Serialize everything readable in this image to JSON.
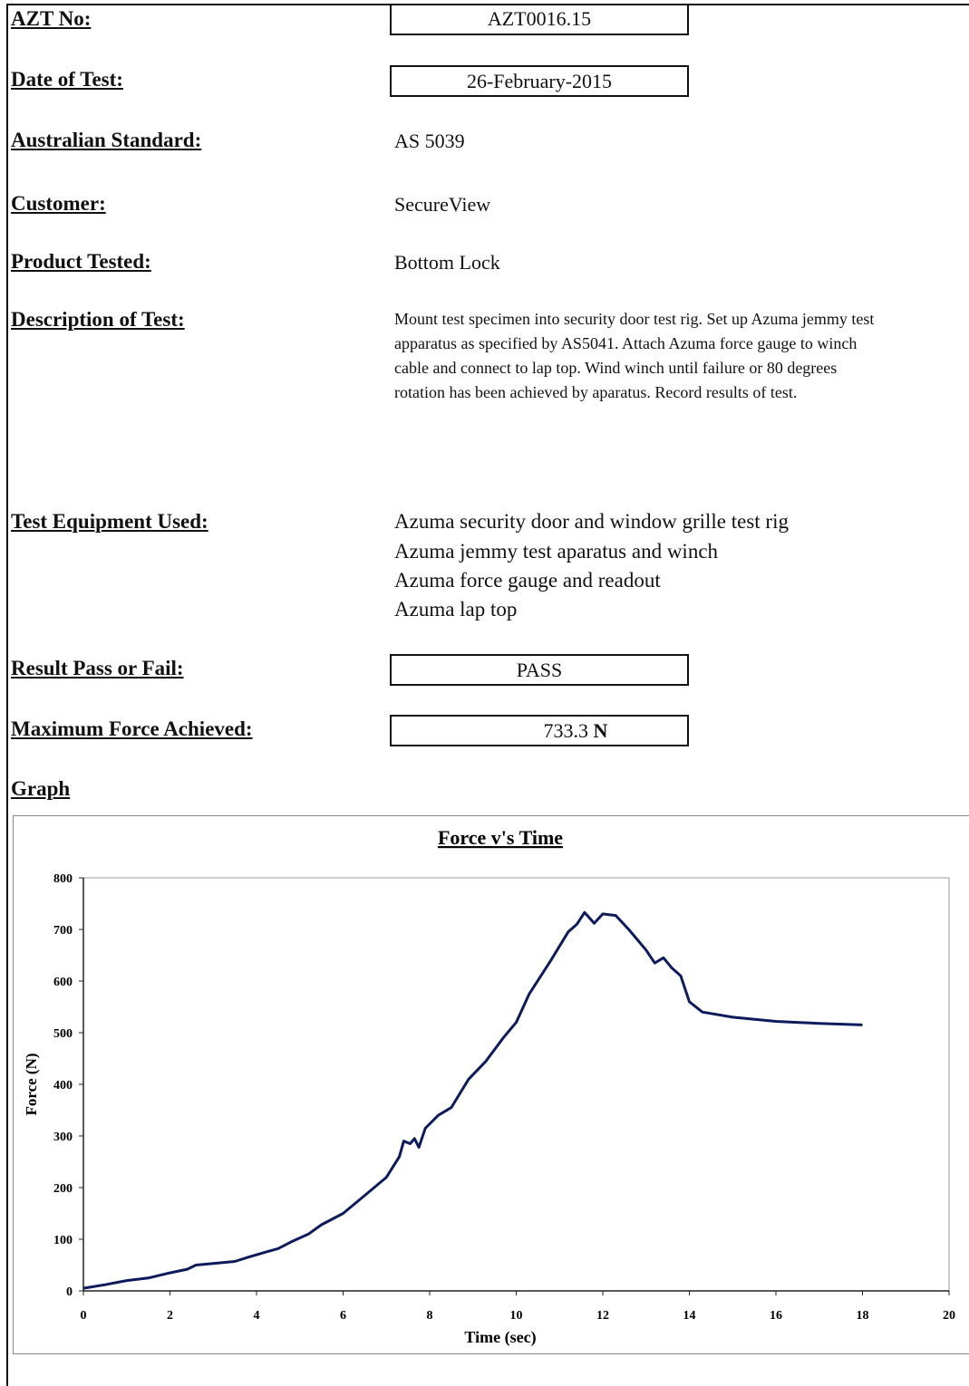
{
  "fields": [
    {
      "label": "AZT No:",
      "value": "AZT0016.15"
    },
    {
      "label": "Date of Test:",
      "value": "26-February-2015"
    },
    {
      "label": "Australian Standard:",
      "value": "AS 5039"
    },
    {
      "label": "Customer:",
      "value": "SecureView"
    },
    {
      "label": "Product Tested:",
      "value": "Bottom Lock"
    },
    {
      "label": "Description of Test:",
      "value": "Mount test specimen into security door test rig. Set up Azuma jemmy test apparatus as specified by AS5041. Attach Azuma force gauge to winch cable and connect to lap top. Wind winch until failure or 80 degrees rotation has been achieved by aparatus. Record results of test."
    },
    {
      "label": "Test Equipment Used:",
      "lines": [
        "Azuma security door and window grille test rig",
        "Azuma jemmy test aparatus and winch",
        "Azuma force gauge and readout",
        "Azuma lap top"
      ]
    },
    {
      "label": "Result Pass or Fail:",
      "value": "PASS"
    },
    {
      "label": "Maximum Force Achieved:",
      "value": "733.3",
      "unit": "N"
    }
  ],
  "graph_heading": "Graph",
  "chart_data": {
    "type": "line",
    "title": "Force v's Time",
    "x_label": "Time (sec)",
    "y_label": "Force (N)",
    "color": "#0d1a5c",
    "x": [
      0,
      0.5,
      1,
      1.5,
      2,
      2.4,
      2.6,
      3,
      3.5,
      3.8,
      4.2,
      4.5,
      4.8,
      5.2,
      5.5,
      6,
      6.5,
      7,
      7.3,
      7.4,
      7.55,
      7.65,
      7.75,
      7.9,
      8.2,
      8.5,
      8.9,
      9.3,
      9.7,
      10,
      10.3,
      10.8,
      11.2,
      11.4,
      11.58,
      11.8,
      12.0,
      12.3,
      12.6,
      12.8,
      13,
      13.2,
      13.4,
      13.6,
      13.8,
      14.0,
      14.3,
      15,
      16,
      17,
      18
    ],
    "values": [
      5,
      12,
      20,
      25,
      35,
      42,
      50,
      53,
      57,
      65,
      75,
      82,
      95,
      110,
      128,
      150,
      185,
      220,
      260,
      290,
      285,
      295,
      278,
      315,
      340,
      355,
      410,
      445,
      490,
      520,
      575,
      640,
      695,
      710,
      733,
      712,
      730,
      727,
      700,
      680,
      660,
      635,
      645,
      625,
      610,
      560,
      540,
      530,
      522,
      518,
      515
    ],
    "xlim": [
      0,
      20
    ],
    "xticks": [
      0,
      2,
      4,
      6,
      8,
      10,
      12,
      14,
      16,
      18,
      20
    ],
    "ylim": [
      0,
      800
    ],
    "yticks": [
      0,
      100,
      200,
      300,
      400,
      500,
      600,
      700,
      800
    ],
    "grid": false
  }
}
